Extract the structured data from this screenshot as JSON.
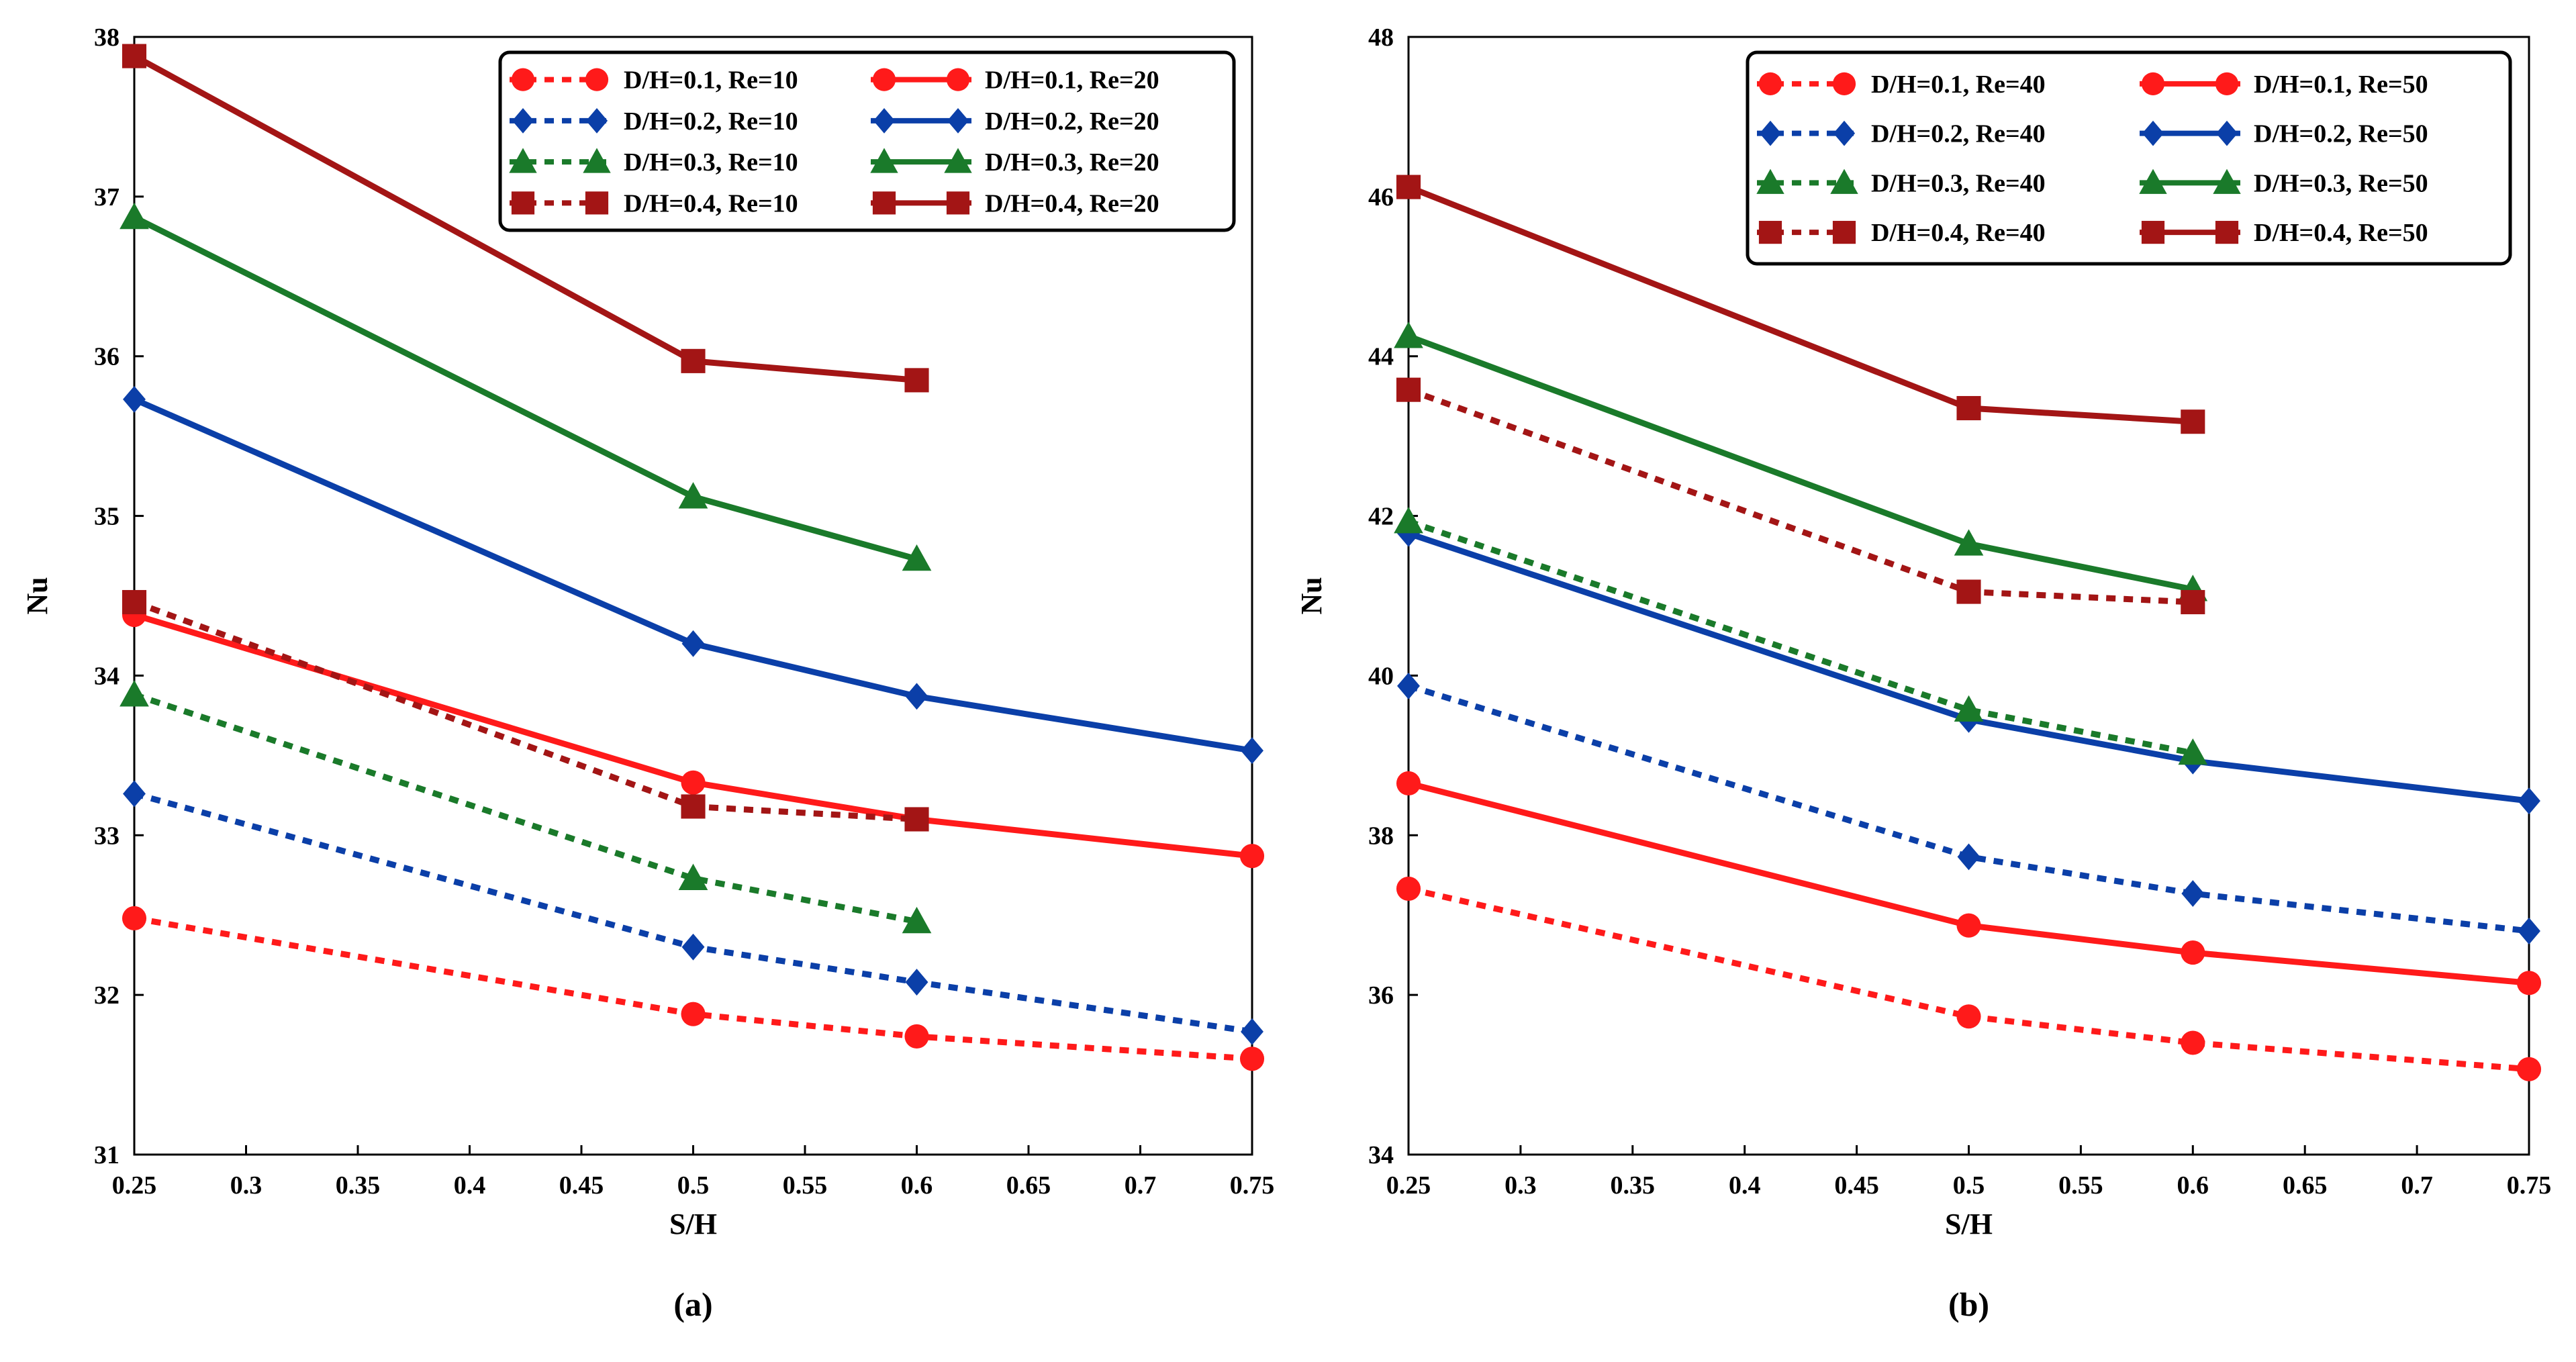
{
  "figure": {
    "panel_labels": [
      "(a)",
      "(b)"
    ]
  },
  "colors": {
    "d01": "#ff1a1a",
    "d02": "#0b3fa8",
    "d03": "#1a7a2a",
    "d04": "#a31515"
  },
  "chart_data": [
    {
      "type": "line",
      "panel_label": "(a)",
      "xlabel": "S/H",
      "ylabel": "Nu",
      "xlim": [
        0.25,
        0.75
      ],
      "ylim": [
        31,
        38
      ],
      "x_ticks": [
        "0.25",
        "0.3",
        "0.35",
        "0.4",
        "0.45",
        "0.5",
        "0.55",
        "0.6",
        "0.65",
        "0.7",
        "0.75"
      ],
      "y_ticks": [
        "31",
        "32",
        "33",
        "34",
        "35",
        "36",
        "37",
        "38"
      ],
      "legend_position": "top-right",
      "series": [
        {
          "name": "D/H=0.1, Re=10",
          "color": "#ff1a1a",
          "style": "dashed",
          "marker": "circle",
          "x": [
            0.25,
            0.5,
            0.6,
            0.75
          ],
          "y": [
            32.48,
            31.88,
            31.74,
            31.6
          ]
        },
        {
          "name": "D/H=0.1, Re=20",
          "color": "#ff1a1a",
          "style": "solid",
          "marker": "circle",
          "x": [
            0.25,
            0.5,
            0.6,
            0.75
          ],
          "y": [
            34.38,
            33.33,
            33.1,
            32.87
          ]
        },
        {
          "name": "D/H=0.2, Re=10",
          "color": "#0b3fa8",
          "style": "dashed",
          "marker": "diamond",
          "x": [
            0.25,
            0.5,
            0.6,
            0.75
          ],
          "y": [
            33.26,
            32.3,
            32.08,
            31.77
          ]
        },
        {
          "name": "D/H=0.2, Re=20",
          "color": "#0b3fa8",
          "style": "solid",
          "marker": "diamond",
          "x": [
            0.25,
            0.5,
            0.6,
            0.75
          ],
          "y": [
            35.73,
            34.2,
            33.87,
            33.53
          ]
        },
        {
          "name": "D/H=0.3, Re=10",
          "color": "#1a7a2a",
          "style": "dashed",
          "marker": "triangle",
          "x": [
            0.25,
            0.5,
            0.6
          ],
          "y": [
            33.88,
            32.73,
            32.46
          ]
        },
        {
          "name": "D/H=0.3, Re=20",
          "color": "#1a7a2a",
          "style": "solid",
          "marker": "triangle",
          "x": [
            0.25,
            0.5,
            0.6
          ],
          "y": [
            36.87,
            35.12,
            34.73
          ]
        },
        {
          "name": "D/H=0.4, Re=10",
          "color": "#a31515",
          "style": "dashed",
          "marker": "square",
          "x": [
            0.25,
            0.5,
            0.6
          ],
          "y": [
            34.46,
            33.18,
            33.1
          ]
        },
        {
          "name": "D/H=0.4, Re=20",
          "color": "#a31515",
          "style": "solid",
          "marker": "square",
          "x": [
            0.25,
            0.5,
            0.6
          ],
          "y": [
            37.88,
            35.97,
            35.85
          ]
        }
      ]
    },
    {
      "type": "line",
      "panel_label": "(b)",
      "xlabel": "S/H",
      "ylabel": "Nu",
      "xlim": [
        0.25,
        0.75
      ],
      "ylim": [
        34,
        48
      ],
      "x_ticks": [
        "0.25",
        "0.3",
        "0.35",
        "0.4",
        "0.45",
        "0.5",
        "0.55",
        "0.6",
        "0.65",
        "0.7",
        "0.75"
      ],
      "y_ticks": [
        "34",
        "36",
        "38",
        "40",
        "42",
        "44",
        "46",
        "48"
      ],
      "legend_position": "top-right",
      "series": [
        {
          "name": "D/H=0.1, Re=40",
          "color": "#ff1a1a",
          "style": "dashed",
          "marker": "circle",
          "x": [
            0.25,
            0.5,
            0.6,
            0.75
          ],
          "y": [
            37.33,
            35.73,
            35.4,
            35.07
          ]
        },
        {
          "name": "D/H=0.1, Re=50",
          "color": "#ff1a1a",
          "style": "solid",
          "marker": "circle",
          "x": [
            0.25,
            0.5,
            0.6,
            0.75
          ],
          "y": [
            38.65,
            36.87,
            36.53,
            36.15
          ]
        },
        {
          "name": "D/H=0.2, Re=40",
          "color": "#0b3fa8",
          "style": "dashed",
          "marker": "diamond",
          "x": [
            0.25,
            0.5,
            0.6,
            0.75
          ],
          "y": [
            39.87,
            37.73,
            37.27,
            36.8
          ]
        },
        {
          "name": "D/H=0.2, Re=50",
          "color": "#0b3fa8",
          "style": "solid",
          "marker": "diamond",
          "x": [
            0.25,
            0.5,
            0.6,
            0.75
          ],
          "y": [
            41.78,
            39.45,
            38.93,
            38.43
          ]
        },
        {
          "name": "D/H=0.3, Re=40",
          "color": "#1a7a2a",
          "style": "dashed",
          "marker": "triangle",
          "x": [
            0.25,
            0.5,
            0.6
          ],
          "y": [
            41.93,
            39.57,
            39.03
          ]
        },
        {
          "name": "D/H=0.3, Re=50",
          "color": "#1a7a2a",
          "style": "solid",
          "marker": "triangle",
          "x": [
            0.25,
            0.5,
            0.6
          ],
          "y": [
            44.25,
            41.65,
            41.08
          ]
        },
        {
          "name": "D/H=0.4, Re=40",
          "color": "#a31515",
          "style": "dashed",
          "marker": "square",
          "x": [
            0.25,
            0.5,
            0.6
          ],
          "y": [
            43.58,
            41.05,
            40.92
          ]
        },
        {
          "name": "D/H=0.4, Re=50",
          "color": "#a31515",
          "style": "solid",
          "marker": "square",
          "x": [
            0.25,
            0.5,
            0.6
          ],
          "y": [
            46.12,
            43.35,
            43.18
          ]
        }
      ]
    }
  ]
}
